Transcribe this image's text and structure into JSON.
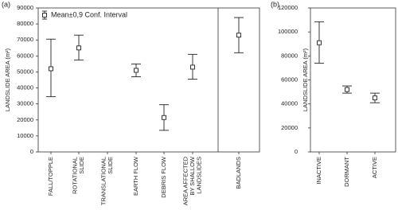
{
  "chart_data": [
    {
      "type": "interval",
      "panel_label": "(a)",
      "ylabel": "LANDSLIDE AREA (m²)",
      "legend": "Mean±0,9 Conf. Interval",
      "color": "#222222",
      "categories": [
        [
          "FALL/TOPPLE"
        ],
        [
          "ROTATIONAL",
          "SLIDE"
        ],
        [
          "TRANSLATIONAL",
          "SLIDE"
        ],
        [
          "EARTH FLOW"
        ],
        [
          "DEBRIS FLOW"
        ],
        [
          "AREA AFFECTED",
          "BY SHALLOW",
          "LANDSLIDES"
        ],
        [
          "BADLANDS"
        ]
      ],
      "values": [
        52000,
        65000,
        null,
        51000,
        21500,
        53000,
        73000
      ],
      "lower": [
        34500,
        57500,
        null,
        47000,
        13500,
        45500,
        62000
      ],
      "upper": [
        70500,
        73000,
        null,
        55000,
        29500,
        61000,
        84000
      ],
      "ylim": [
        0,
        90000
      ],
      "yticks": [
        0,
        10000,
        20000,
        30000,
        40000,
        50000,
        60000,
        70000,
        80000,
        90000
      ]
    },
    {
      "type": "interval",
      "panel_label": "(b)",
      "ylabel": "LANDSLIDE AREA (m²)",
      "color": "#222222",
      "categories": [
        [
          "INACTIVE"
        ],
        [
          "DORMANT"
        ],
        [
          "ACTIVE"
        ]
      ],
      "values": [
        91000,
        52000,
        45000
      ],
      "lower": [
        74000,
        49000,
        41000
      ],
      "upper": [
        108500,
        55000,
        49000
      ],
      "ylim": [
        0,
        120000
      ],
      "yticks": [
        0,
        20000,
        40000,
        60000,
        80000,
        100000,
        120000
      ]
    }
  ]
}
